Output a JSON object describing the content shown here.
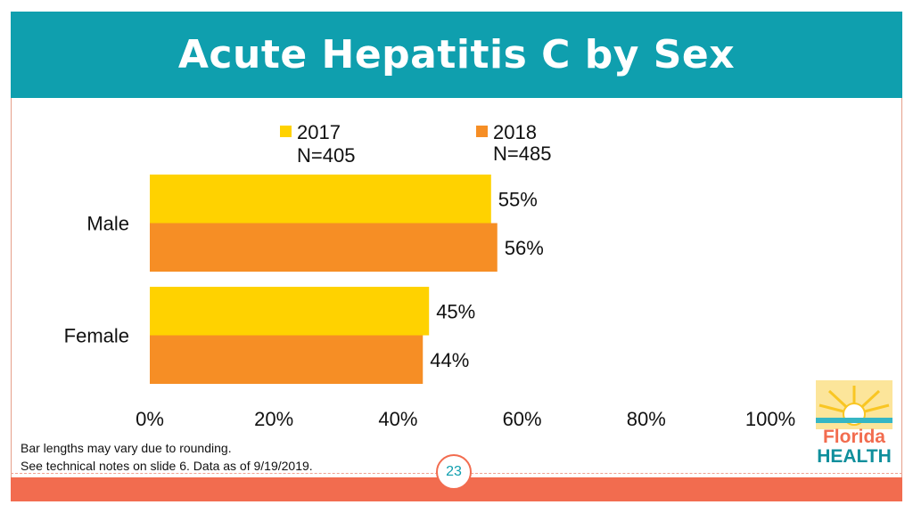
{
  "title": "Acute Hepatitis C by Sex",
  "chart_data": {
    "type": "bar",
    "orientation": "horizontal",
    "categories": [
      "Male",
      "Female"
    ],
    "series": [
      {
        "name": "2017",
        "sub": "N=405",
        "color": "#ffd200",
        "values": [
          55,
          45
        ],
        "labels": [
          "55%",
          "45%"
        ]
      },
      {
        "name": "2018",
        "sub": "N=485",
        "color": "#f68e25",
        "values": [
          56,
          44
        ],
        "labels": [
          "56%",
          "44%"
        ]
      }
    ],
    "xlim": [
      0,
      100
    ],
    "xticks": [
      0,
      20,
      40,
      60,
      80,
      100
    ],
    "xtick_labels": [
      "0%",
      "20%",
      "40%",
      "60%",
      "80%",
      "100%"
    ],
    "legend": "top",
    "grid": false
  },
  "footnotes": [
    "Bar lengths may vary due to rounding.",
    "See technical notes on slide 6. Data as of 9/19/2019."
  ],
  "page_number": "23",
  "logo": {
    "line1": "Florida",
    "line2": "HEALTH"
  },
  "colors": {
    "banner": "#0f9fae",
    "footer": "#f26c4f"
  }
}
